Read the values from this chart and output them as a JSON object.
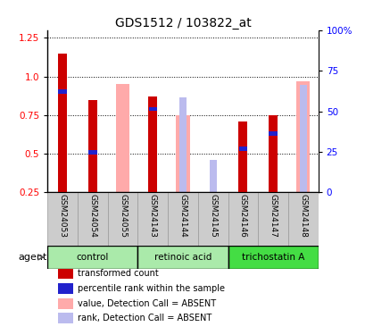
{
  "title": "GDS1512 / 103822_at",
  "samples": [
    "GSM24053",
    "GSM24054",
    "GSM24055",
    "GSM24143",
    "GSM24144",
    "GSM24145",
    "GSM24146",
    "GSM24147",
    "GSM24148"
  ],
  "red_bars": [
    1.15,
    0.85,
    null,
    0.87,
    null,
    null,
    0.71,
    0.75,
    null
  ],
  "blue_bars": [
    0.9,
    0.51,
    null,
    0.79,
    null,
    null,
    0.53,
    0.63,
    null
  ],
  "pink_bars": [
    null,
    null,
    0.95,
    null,
    0.75,
    null,
    null,
    null,
    0.97
  ],
  "lavender_bars": [
    null,
    null,
    null,
    null,
    0.585,
    0.2,
    null,
    null,
    0.66
  ],
  "red_bar_color": "#CC0000",
  "blue_bar_color": "#2222CC",
  "pink_bar_color": "#FFAAAA",
  "lavender_bar_color": "#BBBBEE",
  "ylim_left": [
    0.25,
    1.3
  ],
  "ylim_right": [
    0,
    100
  ],
  "yticks_left": [
    0.25,
    0.5,
    0.75,
    1.0,
    1.25
  ],
  "yticks_right": [
    0,
    25,
    50,
    75,
    100
  ],
  "ytick_labels_right": [
    "0",
    "25",
    "50",
    "75",
    "100%"
  ],
  "red_bar_width": 0.3,
  "pink_bar_width": 0.45,
  "blue_bar_height": 0.028,
  "blue_bar_width": 0.28,
  "group_info": [
    {
      "label": "control",
      "start": 0,
      "end": 2,
      "color": "#AAEAAA"
    },
    {
      "label": "retinoic acid",
      "start": 3,
      "end": 5,
      "color": "#AAEAAA"
    },
    {
      "label": "trichostatin A",
      "start": 6,
      "end": 8,
      "color": "#44DD44"
    }
  ],
  "label_area_color": "#CCCCCC",
  "legend_items": [
    {
      "label": "transformed count",
      "color": "#CC0000"
    },
    {
      "label": "percentile rank within the sample",
      "color": "#2222CC"
    },
    {
      "label": "value, Detection Call = ABSENT",
      "color": "#FFAAAA"
    },
    {
      "label": "rank, Detection Call = ABSENT",
      "color": "#BBBBEE"
    }
  ],
  "agent_label": "agent"
}
